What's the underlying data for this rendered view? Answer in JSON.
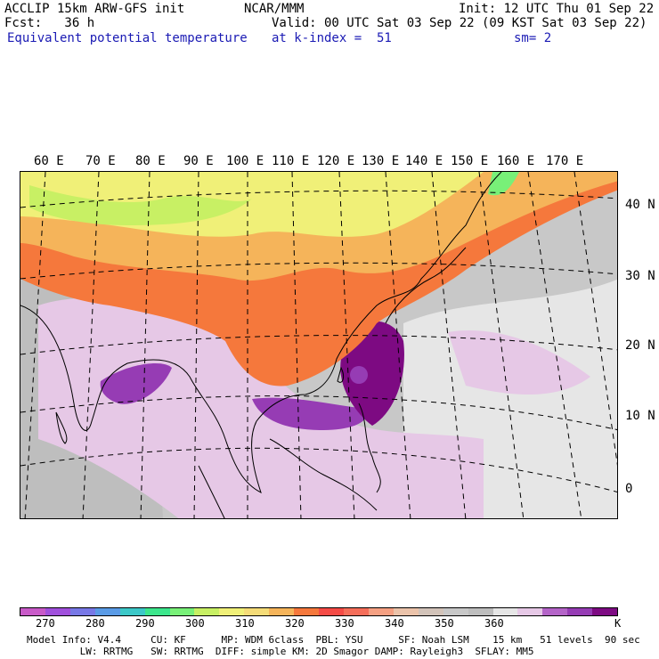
{
  "header": {
    "title_left": "ACCLIP 15km ARW-GFS init",
    "title_center": "NCAR/MMM",
    "init": "Init: 12 UTC Thu 01 Sep 22",
    "fcst": "Fcst:   36 h",
    "valid": "Valid: 00 UTC Sat 03 Sep 22 (09 KST Sat 03 Sep 22)",
    "field": "Equivalent potential temperature",
    "level": "at k-index =  51",
    "smooth": "sm= 2"
  },
  "map": {
    "lon_labels": [
      "60 E",
      "70 E",
      "80 E",
      "90 E",
      "100 E",
      "110 E",
      "120 E",
      "130 E",
      "140 E",
      "150 E",
      "160 E",
      "170 E"
    ],
    "lat_labels": [
      "40 N",
      "30 N",
      "20 N",
      "10 N",
      "0"
    ]
  },
  "colorbar": {
    "colors": [
      "#c85ac8",
      "#a050dc",
      "#7878e6",
      "#5a9be6",
      "#3cc8c8",
      "#3ce68c",
      "#78f078",
      "#c8f064",
      "#f0f078",
      "#f5dc78",
      "#f5b45a",
      "#f5783c",
      "#f54b46",
      "#f56e5a",
      "#f5a082",
      "#ebc3aa",
      "#d2c3b9",
      "#c8c8c8",
      "#bebebe",
      "#e6e6e6",
      "#e6c8e6",
      "#b464c8",
      "#963cb4",
      "#7d0a82"
    ],
    "ticks": [
      "270",
      "280",
      "290",
      "300",
      "310",
      "320",
      "330",
      "340",
      "350",
      "360"
    ],
    "unit": "K"
  },
  "footer": {
    "line1": "Model Info: V4.4     CU: KF      MP: WDM 6class  PBL: YSU      SF: Noah LSM    15 km   51 levels  90 sec",
    "line2": "         LW: RRTMG   SW: RRTMG  DIFF: simple KM: 2D Smagor DAMP: Rayleigh3  SFLAY: MM5"
  }
}
